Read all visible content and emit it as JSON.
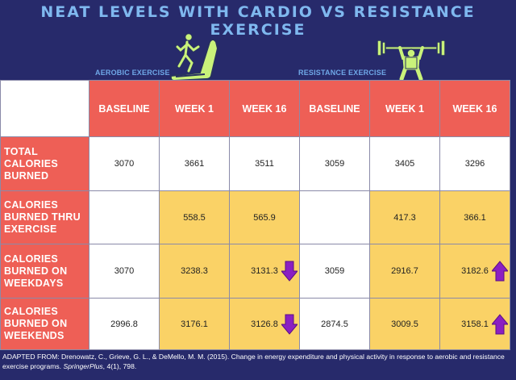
{
  "title": "NEAT LEVELS WITH CARDIO VS RESISTANCE EXERCISE",
  "sections": {
    "aerobic": "AEROBIC EXERCISE",
    "resistance": "RESISTANCE EXERCISE"
  },
  "colors": {
    "background": "#272a6b",
    "header_red": "#ee5f56",
    "highlight_yellow": "#fad266",
    "arrow_purple": "#8b1fc2",
    "figure_green": "#c9f27a"
  },
  "chart_data": {
    "type": "table",
    "title": "NEAT LEVELS WITH CARDIO VS RESISTANCE EXERCISE",
    "columns": [
      "BASELINE",
      "WEEK 1",
      "WEEK 16",
      "BASELINE",
      "WEEK 1",
      "WEEK 16"
    ],
    "column_groups": [
      {
        "name": "AEROBIC EXERCISE",
        "columns": [
          0,
          1,
          2
        ]
      },
      {
        "name": "RESISTANCE EXERCISE",
        "columns": [
          3,
          4,
          5
        ]
      }
    ],
    "rows": [
      {
        "label": "TOTAL CALORIES BURNED",
        "values": [
          "3070",
          "3661",
          "3511",
          "3059",
          "3405",
          "3296"
        ]
      },
      {
        "label": "CALORIES BURNED THRU EXERCISE",
        "values": [
          "",
          "558.5",
          "565.9",
          "",
          "417.3",
          "366.1"
        ]
      },
      {
        "label": "CALORIES BURNED ON WEEKDAYS",
        "values": [
          "3070",
          "3238.3",
          "3131.3",
          "3059",
          "2916.7",
          "3182.6"
        ]
      },
      {
        "label": "CALORIES BURNED ON WEEKENDS",
        "values": [
          "2996.8",
          "3176.1",
          "3126.8",
          "2874.5",
          "3009.5",
          "3158.1"
        ]
      }
    ],
    "indicators": [
      {
        "row": 2,
        "col": 2,
        "direction": "down"
      },
      {
        "row": 2,
        "col": 5,
        "direction": "up"
      },
      {
        "row": 3,
        "col": 2,
        "direction": "down"
      },
      {
        "row": 3,
        "col": 5,
        "direction": "up"
      }
    ]
  },
  "footer": {
    "prefix": "ADAPTED FROM: Drenowatz, C., Grieve, G. L., & DeMello, M. M. (2015). Change in energy expenditure and physical activity in response to aerobic and resistance exercise programs. ",
    "journal": "SpringerPlus",
    "suffix": ", 4(1), 798."
  }
}
